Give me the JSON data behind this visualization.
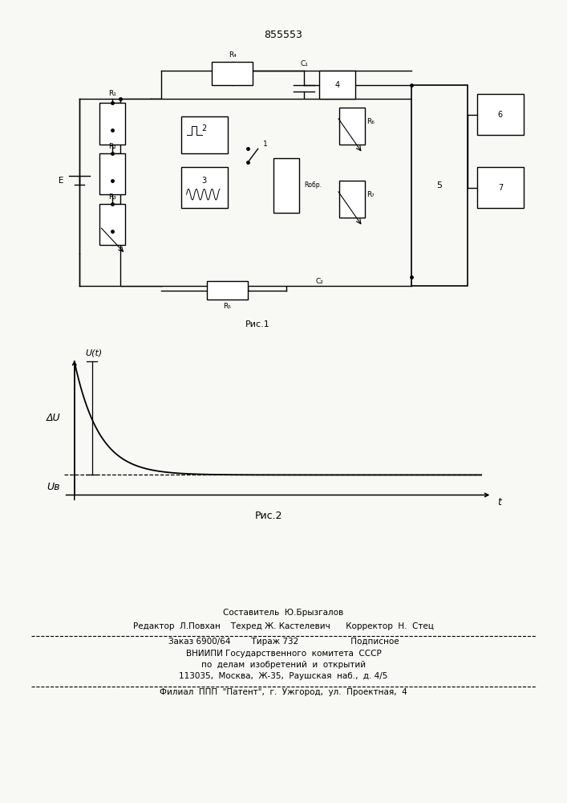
{
  "patent_number": "855553",
  "bg_color": "#f8f8f5",
  "fig1_caption": "Рис.1",
  "fig2_caption": "Рис.2",
  "graph_ylabel": "U(t)",
  "graph_xlabel": "t",
  "graph_delta_label": "ΔU",
  "graph_u0_label": "Uв",
  "footer_line1": "Составитель  Ю.Брызгалов",
  "footer_line2": "Редактор  Л.Повхан    Техред Ж. Кастелевич      Корректор  Н.  Стец",
  "footer_line3": "Заказ 6900/64        Тираж 732                    Подписное",
  "footer_line4": "ВНИИПИ Государственного  комитета  СССР",
  "footer_line5": "по  делам  изобретений  и  открытий",
  "footer_line6": "113035,  Москва,  Ж-35,  Раушская  наб.,  д. 4/5",
  "footer_line7": "Филиал  ППП  \"Патент\",  г.  Ужгород,  ул.  Проектная,  4"
}
